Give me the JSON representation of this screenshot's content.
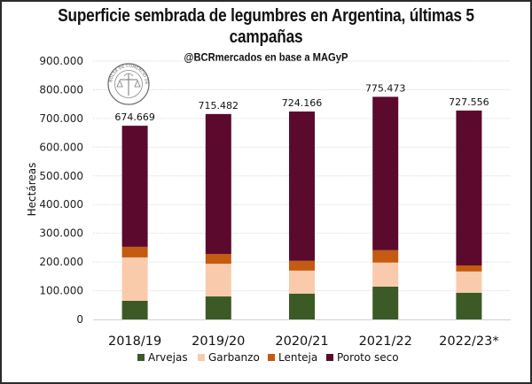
{
  "chart_data": {
    "type": "bar",
    "stacked": true,
    "title": "Superficie sembrada de legumbres en Argentina, últimas 5 campañas",
    "title_lines": [
      "Superficie sembrada de legumbres en Argentina, últimas 5",
      "campañas"
    ],
    "subtitle": "@BCRmercados en base a MAGyP",
    "xlabel": "",
    "ylabel": "Hectáreas",
    "ylim": [
      0,
      900000
    ],
    "yticks": [
      0,
      100000,
      200000,
      300000,
      400000,
      500000,
      600000,
      700000,
      800000,
      900000
    ],
    "ytick_labels": [
      "0",
      "100.000",
      "200.000",
      "300.000",
      "400.000",
      "500.000",
      "600.000",
      "700.000",
      "800.000",
      "900.000"
    ],
    "grid": true,
    "categories": [
      "2018/19",
      "2019/20",
      "2020/21",
      "2021/22",
      "2022/23*"
    ],
    "series": [
      {
        "name": "Arvejas",
        "color": "#3b5a26",
        "values": [
          65000,
          80000,
          90000,
          114000,
          93000
        ]
      },
      {
        "name": "Garbanzo",
        "color": "#f9cbac",
        "values": [
          151000,
          114000,
          80000,
          84000,
          74000
        ]
      },
      {
        "name": "Lenteja",
        "color": "#c55a11",
        "values": [
          37000,
          34000,
          34000,
          43000,
          21000
        ]
      },
      {
        "name": "Poroto seco",
        "color": "#5b0a2e",
        "values": [
          421669,
          487482,
          520166,
          534473,
          539556
        ]
      }
    ],
    "totals": [
      674669,
      715482,
      724166,
      775473,
      727556
    ],
    "total_labels": [
      "674.669",
      "715.482",
      "724.166",
      "775.473",
      "727.556"
    ],
    "legend": {
      "placement": "bottom",
      "entries": [
        "Arvejas",
        "Garbanzo",
        "Lenteja",
        "Poroto seco"
      ]
    }
  },
  "logo": {
    "text": "BOLSA DE COMERCIO DE ROSARIO",
    "icon": "bcr-seal-icon"
  }
}
